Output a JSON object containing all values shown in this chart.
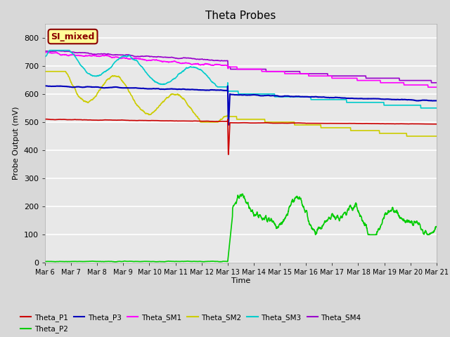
{
  "title": "Theta Probes",
  "xlabel": "Time",
  "ylabel": "Probe Output (mV)",
  "ylim": [
    0,
    850
  ],
  "background_color": "#e8e8e8",
  "annotation_text": "SI_mixed",
  "annotation_bg": "#ffff99",
  "annotation_border": "#8B0000",
  "series": {
    "Theta_P1": {
      "color": "#cc0000",
      "linewidth": 1.2
    },
    "Theta_P2": {
      "color": "#00cc00",
      "linewidth": 1.2
    },
    "Theta_P3": {
      "color": "#0000bb",
      "linewidth": 1.5
    },
    "Theta_SM1": {
      "color": "#ff00ff",
      "linewidth": 1.2
    },
    "Theta_SM2": {
      "color": "#cccc00",
      "linewidth": 1.2
    },
    "Theta_SM3": {
      "color": "#00cccc",
      "linewidth": 1.2
    },
    "Theta_SM4": {
      "color": "#9900cc",
      "linewidth": 1.2
    }
  },
  "xtick_labels": [
    "Mar 6",
    "Mar 7",
    "Mar 8",
    "Mar 9",
    "Mar 10",
    "Mar 11",
    "Mar 12",
    "Mar 13",
    "Mar 14",
    "Mar 15",
    "Mar 16",
    "Mar 17",
    "Mar 18",
    "Mar 19",
    "Mar 20",
    "Mar 21"
  ],
  "ytick_values": [
    0,
    100,
    200,
    300,
    400,
    500,
    600,
    700,
    800
  ],
  "n_days": 15
}
